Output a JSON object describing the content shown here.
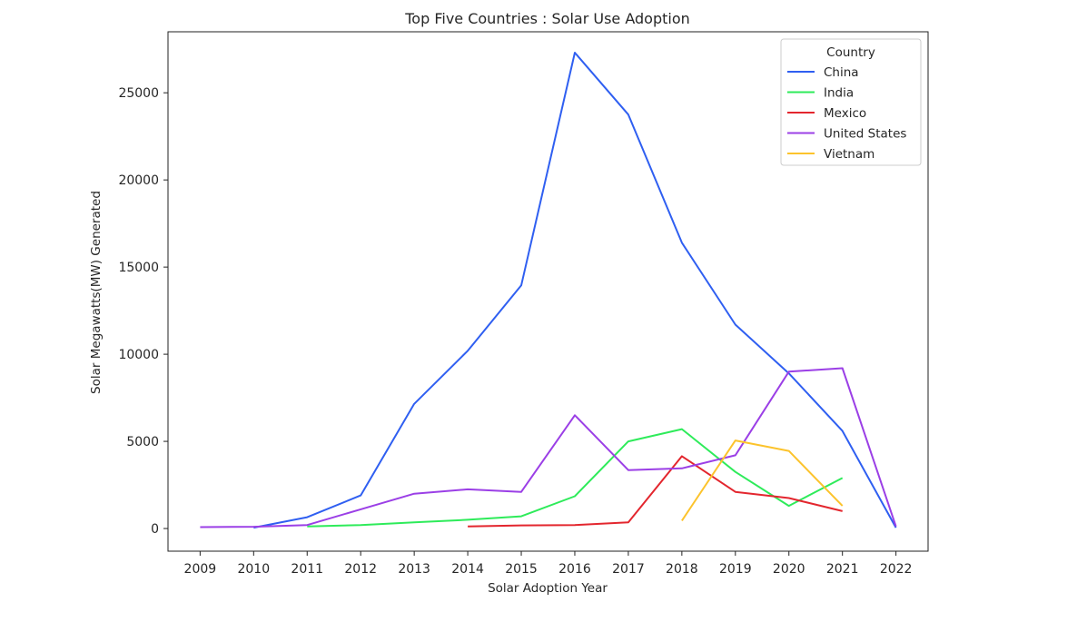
{
  "chart_data": {
    "type": "line",
    "title": "Top Five Countries : Solar Use Adoption",
    "xlabel": "Solar Adoption Year",
    "ylabel": "Solar Megawatts(MW) Generated",
    "xlim": [
      2008.4,
      2022.6
    ],
    "ylim": [
      -1300,
      28500
    ],
    "xticks": [
      2009,
      2010,
      2011,
      2012,
      2013,
      2014,
      2015,
      2016,
      2017,
      2018,
      2019,
      2020,
      2021,
      2022
    ],
    "yticks": [
      0,
      5000,
      10000,
      15000,
      20000,
      25000
    ],
    "grid": false,
    "legend": {
      "title": "Country",
      "placement": "top-right"
    },
    "series": [
      {
        "name": "China",
        "color": "#2f5ff1",
        "x": [
          2010,
          2011,
          2012,
          2013,
          2014,
          2015,
          2016,
          2017,
          2018,
          2019,
          2020,
          2021,
          2022
        ],
        "y": [
          50,
          650,
          1900,
          7150,
          10200,
          13950,
          27300,
          23750,
          16400,
          11700,
          8900,
          5600,
          50
        ]
      },
      {
        "name": "India",
        "color": "#2eeb5a",
        "x": [
          2011,
          2012,
          2013,
          2014,
          2015,
          2016,
          2017,
          2018,
          2019,
          2020,
          2021
        ],
        "y": [
          120,
          200,
          350,
          500,
          700,
          1850,
          5000,
          5700,
          3250,
          1300,
          2900
        ]
      },
      {
        "name": "Mexico",
        "color": "#e3262e",
        "x": [
          2014,
          2015,
          2016,
          2017,
          2018,
          2019,
          2020,
          2021
        ],
        "y": [
          120,
          180,
          200,
          350,
          4150,
          2100,
          1750,
          1000
        ]
      },
      {
        "name": "United States",
        "color": "#9b3fe6",
        "x": [
          2009,
          2010,
          2011,
          2012,
          2013,
          2014,
          2015,
          2016,
          2017,
          2018,
          2019,
          2020,
          2021,
          2022
        ],
        "y": [
          80,
          100,
          200,
          1100,
          2000,
          2250,
          2100,
          6500,
          3350,
          3450,
          4200,
          9000,
          9200,
          120
        ]
      },
      {
        "name": "Vietnam",
        "color": "#fcc32c",
        "x": [
          2018,
          2019,
          2020,
          2021
        ],
        "y": [
          450,
          5050,
          4450,
          1300
        ]
      }
    ]
  }
}
